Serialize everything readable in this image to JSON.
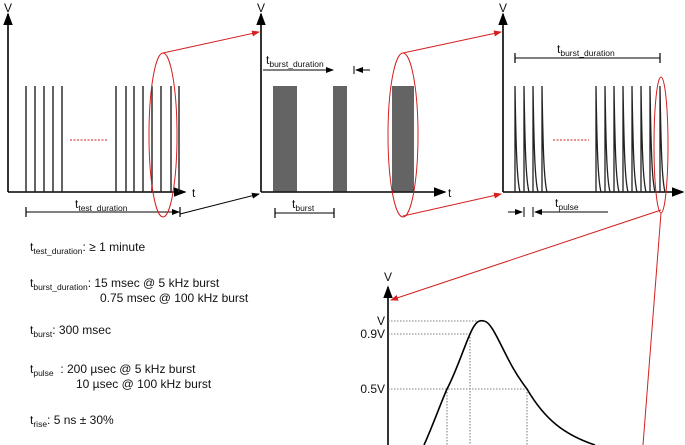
{
  "axes": {
    "v_label": "V",
    "t_label": "t"
  },
  "dimensions": {
    "test_duration": {
      "t": "t",
      "sub": "test_duration"
    },
    "burst_duration": {
      "t": "t",
      "sub": "burst_duration"
    },
    "burst": {
      "t": "t",
      "sub": "burst"
    },
    "pulse": {
      "t": "t",
      "sub": "pulse"
    }
  },
  "pulse_graph": {
    "y_label": "V",
    "levels": [
      "V",
      "0.9V",
      "0.5V"
    ]
  },
  "specs": [
    {
      "t": "t",
      "sub": "test_duration",
      "lines": [
        ": ≥ 1 minute"
      ]
    },
    {
      "t": "t",
      "sub": "burst_duration",
      "lines": [
        ": 15 msec @ 5 kHz burst",
        "0.75 msec @ 100 kHz burst"
      ]
    },
    {
      "t": "t",
      "sub": "burst",
      "lines": [
        ": 300 msec"
      ]
    },
    {
      "t": "t",
      "sub": "pulse",
      "lines": [
        "  : 200 µsec @ 5 kHz burst",
        "10 µsec @ 100 kHz burst"
      ]
    },
    {
      "t": "t",
      "sub": "rise",
      "lines": [
        ": 5 ns ± 30%"
      ]
    }
  ],
  "colors": {
    "highlight": "#d42020",
    "line": "#222222"
  }
}
